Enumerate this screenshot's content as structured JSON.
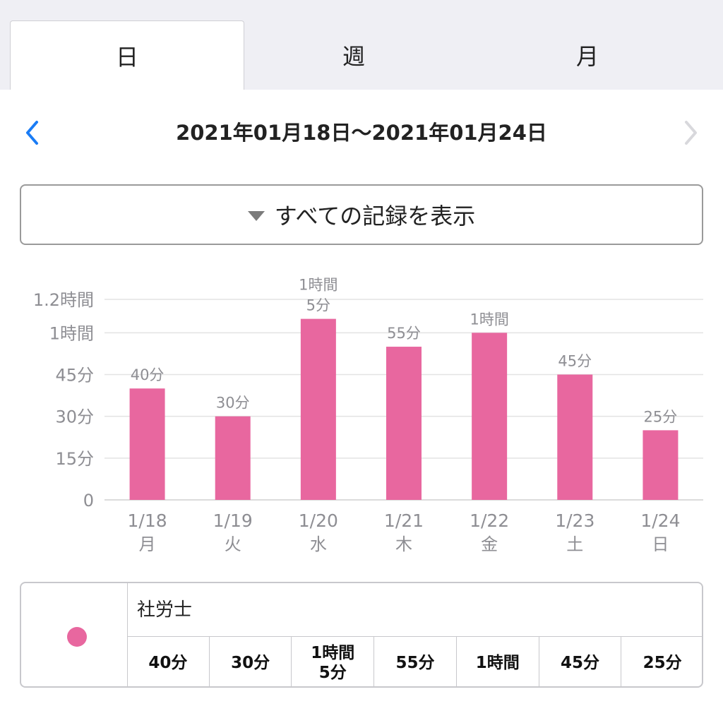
{
  "tabs": [
    {
      "label": "日",
      "active": true
    },
    {
      "label": "週",
      "active": false
    },
    {
      "label": "月",
      "active": false
    }
  ],
  "nav": {
    "date_range": "2021年01月18日〜2021年01月24日",
    "prev_icon": "chevron-left-icon",
    "next_icon": "chevron-right-icon",
    "accent_color": "#1a7cf5",
    "disabled_color": "#d8d8dc"
  },
  "filter": {
    "label": "すべての記録を表示",
    "icon": "triangle-down-icon"
  },
  "chart_data": {
    "type": "bar",
    "categories": [
      "1/18",
      "1/19",
      "1/20",
      "1/21",
      "1/22",
      "1/23",
      "1/24"
    ],
    "weekdays": [
      "月",
      "火",
      "水",
      "木",
      "金",
      "土",
      "日"
    ],
    "series": [
      {
        "name": "社労士",
        "color": "#e8679f",
        "values": [
          40,
          30,
          65,
          55,
          60,
          45,
          25
        ]
      }
    ],
    "value_unit": "minutes",
    "data_labels": [
      "40分",
      "30分",
      "1時間\n5分",
      "55分",
      "1時間",
      "45分",
      "25分"
    ],
    "y_ticks": [
      {
        "value": 0,
        "label": "0"
      },
      {
        "value": 15,
        "label": "15分"
      },
      {
        "value": 30,
        "label": "30分"
      },
      {
        "value": 45,
        "label": "45分"
      },
      {
        "value": 60,
        "label": "1時間"
      },
      {
        "value": 72,
        "label": "1.2時間"
      }
    ],
    "ylim": [
      0,
      72
    ],
    "grid": true
  },
  "legend": {
    "name": "社労士",
    "color": "#e8679f",
    "values": [
      "40分",
      "30分",
      "1時間\n5分",
      "55分",
      "1時間",
      "45分",
      "25分"
    ]
  }
}
